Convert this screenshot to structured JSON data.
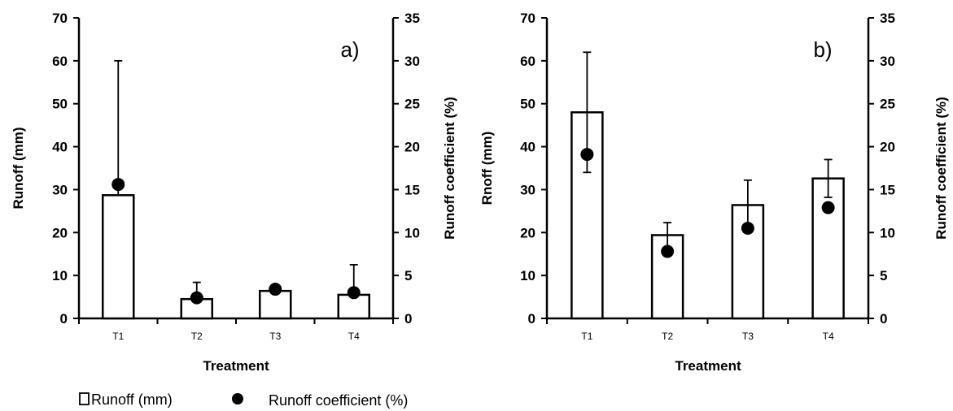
{
  "chart_data": [
    {
      "type": "bar",
      "panel_label": "a)",
      "categories": [
        "T1",
        "T2",
        "T3",
        "T4"
      ],
      "xlabel": "Treatment",
      "ylabel": "Runoff (mm)",
      "y2label": "Runoff coefficient (%)",
      "ylim": [
        0,
        70
      ],
      "y2lim": [
        0,
        35
      ],
      "yticks": [
        "0",
        "10",
        "20",
        "30",
        "40",
        "50",
        "60",
        "70"
      ],
      "y2ticks": [
        "0",
        "5",
        "10",
        "15",
        "20",
        "25",
        "30",
        "35"
      ],
      "series": [
        {
          "name": "Runoff (mm)",
          "kind": "bar",
          "axis": "left",
          "values": [
            28.7,
            4.5,
            6.4,
            5.5
          ],
          "error_upper": [
            60,
            8.4,
            6.4,
            12.5
          ]
        },
        {
          "name": "Runoff coefficient (%)",
          "kind": "scatter",
          "axis": "right",
          "values": [
            15.6,
            2.4,
            3.4,
            3.0
          ]
        }
      ],
      "grid": false
    },
    {
      "type": "bar",
      "panel_label": "b)",
      "categories": [
        "T1",
        "T2",
        "T3",
        "T4"
      ],
      "xlabel": "Treatment",
      "ylabel": "Rnoff (mm)",
      "y2label": "Runoff coefficient (%)",
      "ylim": [
        0,
        70
      ],
      "y2lim": [
        0,
        35
      ],
      "yticks": [
        "0",
        "10",
        "20",
        "30",
        "40",
        "50",
        "60",
        "70"
      ],
      "y2ticks": [
        "0",
        "5",
        "10",
        "15",
        "20",
        "25",
        "30",
        "35"
      ],
      "series": [
        {
          "name": "Runoff (mm)",
          "kind": "bar",
          "axis": "left",
          "values": [
            48,
            19.4,
            26.4,
            32.6
          ],
          "error_upper": [
            62,
            22.3,
            32.2,
            37
          ],
          "error_lower": [
            34,
            16.5,
            20.6,
            28.2
          ]
        },
        {
          "name": "Runoff coefficient (%)",
          "kind": "scatter",
          "axis": "right",
          "values": [
            19.1,
            7.8,
            10.5,
            12.9
          ]
        }
      ],
      "grid": false
    }
  ],
  "legend": {
    "position": "bottom-left",
    "bar_label": "Runoff (mm)",
    "dot_label": "Runoff coefficient (%)"
  }
}
